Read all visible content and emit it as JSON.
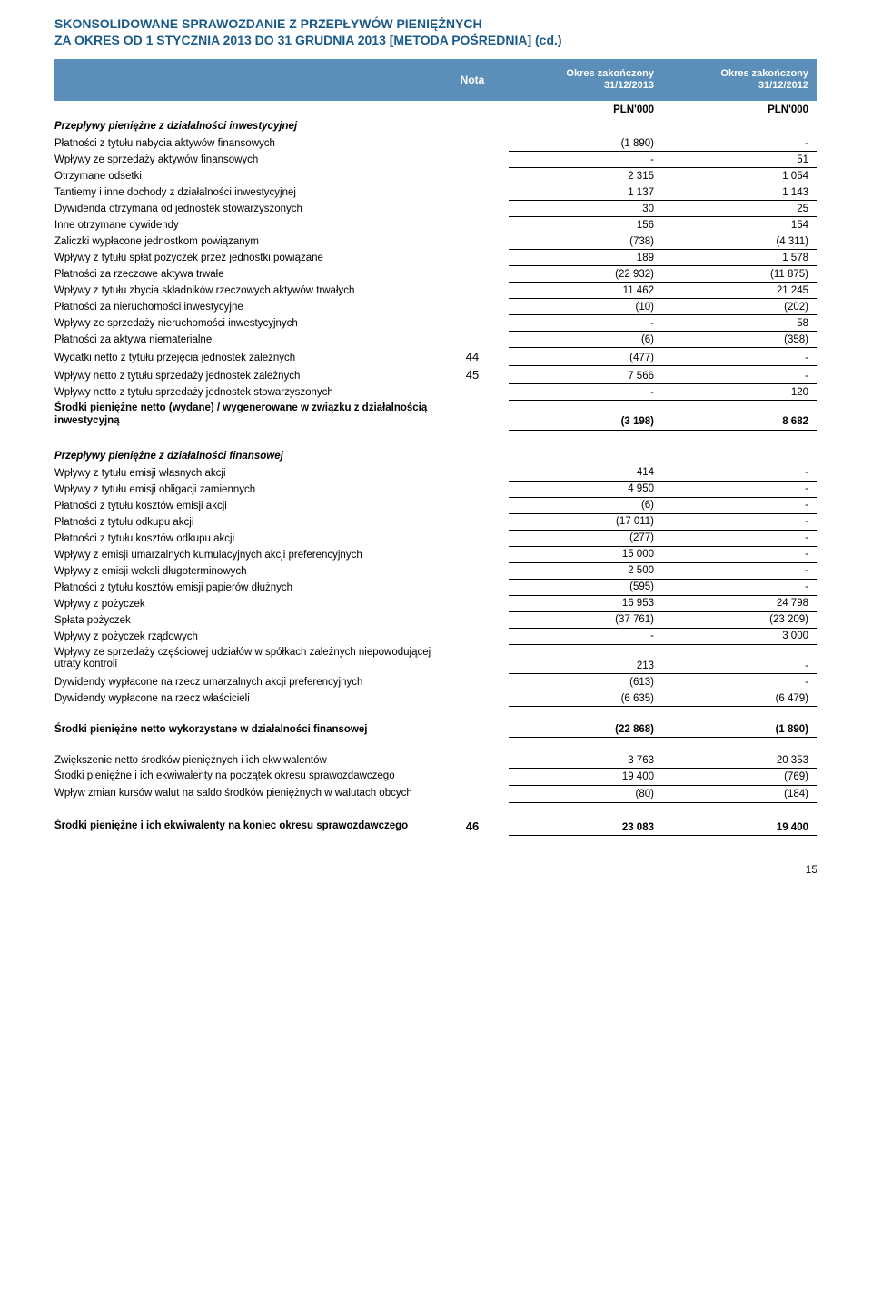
{
  "title": {
    "line1": "SKONSOLIDOWANE SPRAWOZDANIE Z PRZEPŁYWÓW PIENIĘŻNYCH",
    "line2": "ZA OKRES OD 1 STYCZNIA 2013 DO 31 GRUDNIA 2013 [METODA POŚREDNIA] (cd.)"
  },
  "header": {
    "nota": "Nota",
    "col1_line1": "Okres zakończony",
    "col1_line2": "31/12/2013",
    "col2_line1": "Okres zakończony",
    "col2_line2": "31/12/2012",
    "pln": "PLN'000"
  },
  "sec_invest": {
    "heading": "Przepływy pieniężne z działalności inwestycyjnej",
    "rows": [
      {
        "desc": "Płatności z tytułu nabycia aktywów finansowych",
        "nota": "",
        "v1": "(1 890)",
        "v2": "-"
      },
      {
        "desc": "Wpływy ze sprzedaży aktywów finansowych",
        "nota": "",
        "v1": "-",
        "v2": "51"
      },
      {
        "desc": "Otrzymane odsetki",
        "nota": "",
        "v1": "2 315",
        "v2": "1 054"
      },
      {
        "desc": "Tantiemy i inne dochody z działalności inwestycyjnej",
        "nota": "",
        "v1": "1 137",
        "v2": "1 143"
      },
      {
        "desc": "Dywidenda otrzymana od jednostek stowarzyszonych",
        "nota": "",
        "v1": "30",
        "v2": "25"
      },
      {
        "desc": "Inne otrzymane dywidendy",
        "nota": "",
        "v1": "156",
        "v2": "154"
      },
      {
        "desc": "Zaliczki wypłacone jednostkom powiązanym",
        "nota": "",
        "v1": "(738)",
        "v2": "(4 311)"
      },
      {
        "desc": "Wpływy z tytułu spłat pożyczek przez jednostki powiązane",
        "nota": "",
        "v1": "189",
        "v2": "1 578"
      },
      {
        "desc": "Płatności za rzeczowe aktywa trwałe",
        "nota": "",
        "v1": "(22 932)",
        "v2": "(11 875)"
      },
      {
        "desc": "Wpływy z tytułu zbycia składników rzeczowych aktywów trwałych",
        "nota": "",
        "v1": "11 462",
        "v2": "21 245"
      },
      {
        "desc": "Płatności za nieruchomości inwestycyjne",
        "nota": "",
        "v1": "(10)",
        "v2": "(202)"
      },
      {
        "desc": "Wpływy ze sprzedaży nieruchomości inwestycyjnych",
        "nota": "",
        "v1": "-",
        "v2": "58"
      },
      {
        "desc": "Płatności za aktywa niematerialne",
        "nota": "",
        "v1": "(6)",
        "v2": "(358)"
      },
      {
        "desc": "Wydatki netto z tytułu przejęcia jednostek zależnych",
        "nota": "44",
        "v1": "(477)",
        "v2": "-"
      },
      {
        "desc": "Wpływy netto z tytułu sprzedaży jednostek zależnych",
        "nota": "45",
        "v1": "7 566",
        "v2": "-"
      },
      {
        "desc": "Wpływy netto z tytułu sprzedaży jednostek stowarzyszonych",
        "nota": "",
        "v1": "-",
        "v2": "120"
      }
    ],
    "total": {
      "desc": "Środki pieniężne netto (wydane) / wygenerowane w związku z działalnością inwestycyjną",
      "v1": "(3 198)",
      "v2": "8 682"
    }
  },
  "sec_finance": {
    "heading": "Przepływy pieniężne z działalności finansowej",
    "rows": [
      {
        "desc": "Wpływy z tytułu emisji własnych akcji",
        "v1": "414",
        "v2": "-"
      },
      {
        "desc": "Wpływy z tytułu emisji obligacji zamiennych",
        "v1": "4 950",
        "v2": "-"
      },
      {
        "desc": "Płatności z tytułu kosztów emisji akcji",
        "v1": "(6)",
        "v2": "-"
      },
      {
        "desc": "Płatności z tytułu odkupu akcji",
        "v1": "(17 011)",
        "v2": "-"
      },
      {
        "desc": "Płatności z tytułu kosztów odkupu akcji",
        "v1": "(277)",
        "v2": "-"
      },
      {
        "desc": "Wpływy z emisji umarzalnych kumulacyjnych akcji preferencyjnych",
        "v1": "15 000",
        "v2": "-"
      },
      {
        "desc": "Wpływy z emisji weksli długoterminowych",
        "v1": "2 500",
        "v2": "-"
      },
      {
        "desc": "Płatności z tytułu kosztów emisji papierów dłużnych",
        "v1": "(595)",
        "v2": "-"
      },
      {
        "desc": "Wpływy z pożyczek",
        "v1": "16 953",
        "v2": "24 798"
      },
      {
        "desc": "Spłata pożyczek",
        "v1": "(37 761)",
        "v2": "(23 209)"
      },
      {
        "desc": "Wpływy z pożyczek rządowych",
        "v1": "-",
        "v2": "3 000"
      },
      {
        "desc": "Wpływy ze sprzedaży częściowej udziałów w spółkach zależnych niepowodującej utraty kontroli",
        "v1": "213",
        "v2": "-"
      },
      {
        "desc": "Dywidendy wypłacone na rzecz umarzalnych akcji preferencyjnych",
        "v1": "(613)",
        "v2": "-"
      },
      {
        "desc": "Dywidendy wypłacone na rzecz właścicieli",
        "v1": "(6 635)",
        "v2": "(6 479)"
      }
    ],
    "total": {
      "desc": "Środki pieniężne netto wykorzystane w działalności finansowej",
      "v1": "(22 868)",
      "v2": "(1 890)"
    }
  },
  "summary": {
    "rows": [
      {
        "desc": "Zwiększenie netto środków pieniężnych i ich ekwiwalentów",
        "v1": "3 763",
        "v2": "20 353"
      },
      {
        "desc": "Środki pieniężne i ich ekwiwalenty na początek okresu sprawozdawczego",
        "v1": "19 400",
        "v2": "(769)"
      },
      {
        "desc": "Wpływ zmian kursów walut na saldo środków pieniężnych w walutach obcych",
        "v1": "(80)",
        "v2": "(184)"
      }
    ],
    "final": {
      "desc": "Środki pieniężne i ich ekwiwalenty na koniec okresu sprawozdawczego",
      "nota": "46",
      "v1": "23 083",
      "v2": "19 400"
    }
  },
  "page_number": "15",
  "colors": {
    "title": "#1a5a8a",
    "header_bg": "#5b8fb9",
    "text": "#000000",
    "bg": "#ffffff"
  }
}
